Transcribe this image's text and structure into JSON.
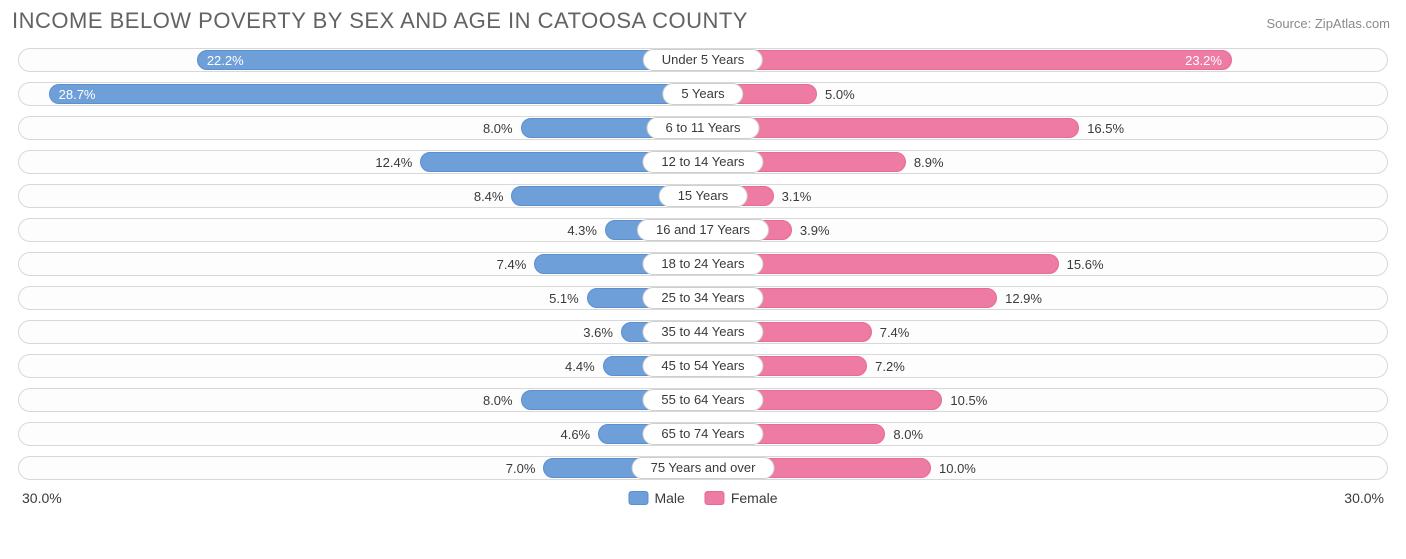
{
  "title": "INCOME BELOW POVERTY BY SEX AND AGE IN CATOOSA COUNTY",
  "source": "Source: ZipAtlas.com",
  "max_pct": 30.0,
  "axis_label": "30.0%",
  "colors": {
    "male_fill": "#6f9fd8",
    "male_border": "#5a8fd0",
    "female_fill": "#ed7ba3",
    "female_border": "#e76a97",
    "row_border": "#d8d8d8",
    "text_dark": "#3a3a3a",
    "text_light": "#ffffff"
  },
  "inside_threshold_pct": 18.0,
  "legend": {
    "male": "Male",
    "female": "Female"
  },
  "rows": [
    {
      "age": "Under 5 Years",
      "male": 22.2,
      "female": 23.2
    },
    {
      "age": "5 Years",
      "male": 28.7,
      "female": 5.0
    },
    {
      "age": "6 to 11 Years",
      "male": 8.0,
      "female": 16.5
    },
    {
      "age": "12 to 14 Years",
      "male": 12.4,
      "female": 8.9
    },
    {
      "age": "15 Years",
      "male": 8.4,
      "female": 3.1
    },
    {
      "age": "16 and 17 Years",
      "male": 4.3,
      "female": 3.9
    },
    {
      "age": "18 to 24 Years",
      "male": 7.4,
      "female": 15.6
    },
    {
      "age": "25 to 34 Years",
      "male": 5.1,
      "female": 12.9
    },
    {
      "age": "35 to 44 Years",
      "male": 3.6,
      "female": 7.4
    },
    {
      "age": "45 to 54 Years",
      "male": 4.4,
      "female": 7.2
    },
    {
      "age": "55 to 64 Years",
      "male": 8.0,
      "female": 10.5
    },
    {
      "age": "65 to 74 Years",
      "male": 4.6,
      "female": 8.0
    },
    {
      "age": "75 Years and over",
      "male": 7.0,
      "female": 10.0
    }
  ]
}
